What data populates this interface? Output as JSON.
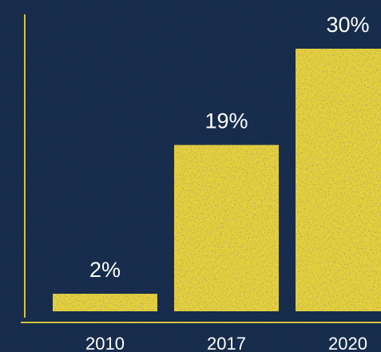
{
  "chart_data": {
    "type": "bar",
    "categories": [
      "2010",
      "2017",
      "2020"
    ],
    "values": [
      2,
      19,
      30
    ],
    "value_labels": [
      "2%",
      "19%",
      "30%"
    ],
    "ylim": [
      0,
      30
    ],
    "grid": false,
    "colors": {
      "background": "#0f2140",
      "bar": "#e7d23b",
      "axis": "#d8c23a",
      "text": "#ffffff"
    }
  }
}
